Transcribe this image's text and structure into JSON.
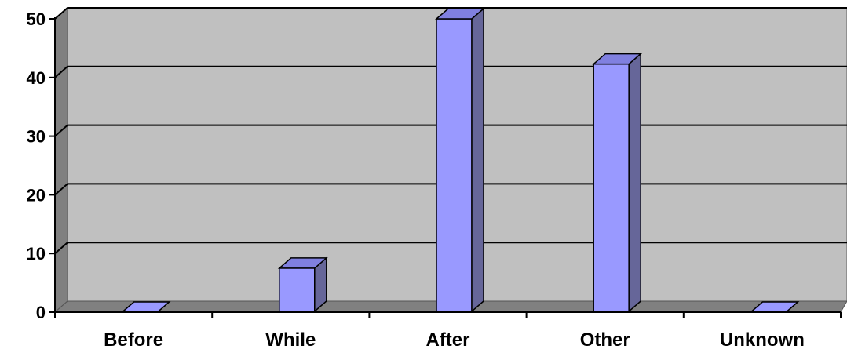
{
  "chart_data": {
    "type": "bar",
    "title": "",
    "xlabel": "",
    "ylabel": "",
    "categories": [
      "Before",
      "While",
      "After",
      "Other",
      "Unknown"
    ],
    "values": [
      0,
      7.5,
      50,
      42.3,
      0
    ],
    "ylim": [
      0,
      50
    ],
    "yticks": [
      "0",
      "10",
      "20",
      "30",
      "40",
      "50"
    ],
    "grid": true,
    "style": "3d",
    "colors": {
      "bar_front": "#9999ff",
      "bar_side": "#666699",
      "bar_top": "#8080e0",
      "wall": "#c0c0c0",
      "wall_side": "#808080",
      "floor": "#808080",
      "gridline": "#000000"
    }
  }
}
